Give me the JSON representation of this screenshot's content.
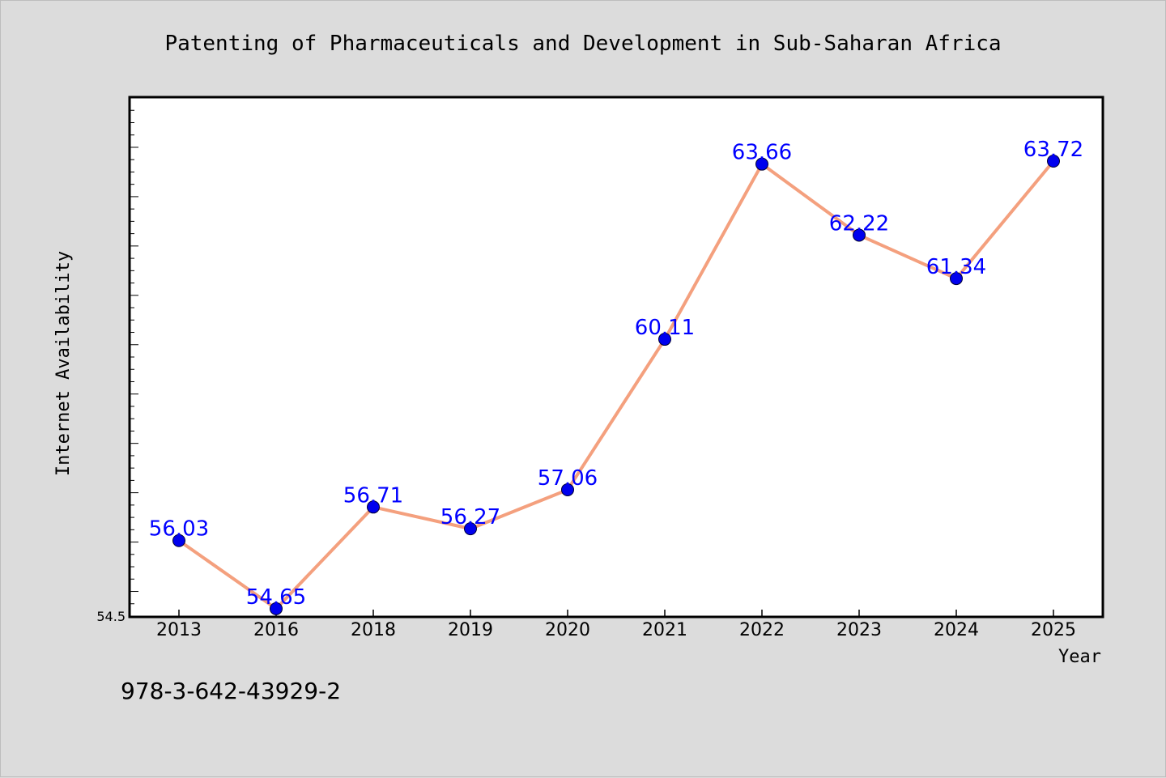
{
  "chart_data": {
    "type": "line",
    "title": "Patenting of Pharmaceuticals and Development in Sub-Saharan Africa",
    "xlabel": "Year",
    "ylabel": "Internet Availability",
    "categories": [
      "2013",
      "2016",
      "2018",
      "2019",
      "2020",
      "2021",
      "2022",
      "2023",
      "2024",
      "2025"
    ],
    "values": [
      56.03,
      54.65,
      56.71,
      56.27,
      57.06,
      60.11,
      63.66,
      62.22,
      61.34,
      63.72
    ],
    "data_labels": [
      "56.03",
      "54.65",
      "56.71",
      "56.27",
      "57.06",
      "60.11",
      "63.66",
      "62.22",
      "61.34",
      "63.72"
    ],
    "ylim": [
      54.5,
      65.0
    ],
    "y_tick_labels": [
      "54.5"
    ],
    "grid": false,
    "line_color": "#f4a07e",
    "marker_color": "#0000ee",
    "label_color": "#0000ff"
  },
  "footer": {
    "isbn": "978-3-642-43929-2"
  }
}
